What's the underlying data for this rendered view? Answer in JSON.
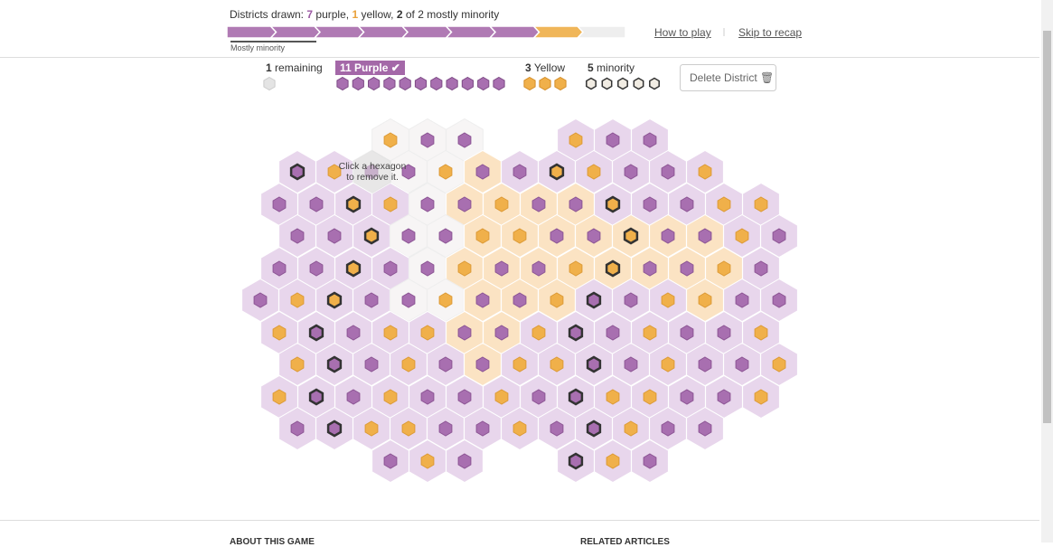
{
  "header": {
    "status_prefix": "Districts drawn:",
    "purple_count": 7,
    "purple_word": "purple,",
    "yellow_count": 1,
    "yellow_word": "yellow,",
    "minority_count": 2,
    "minority_text": "of 2 mostly minority"
  },
  "progress_label": "Mostly minority",
  "links": [
    "How to play",
    "Skip to recap"
  ],
  "counters": {
    "remaining": {
      "count": 1,
      "label": "remaining"
    },
    "purple": {
      "count": 11,
      "label": "Purple"
    },
    "yellow": {
      "count": 3,
      "label": "Yellow"
    },
    "minority": {
      "count": 5,
      "label": "minority"
    }
  },
  "delete_button": "Delete District",
  "tooltip": "Click a hexagon to remove it.",
  "footer": [
    "ABOUT THIS GAME",
    "RELATED ARTICLES"
  ]
}
